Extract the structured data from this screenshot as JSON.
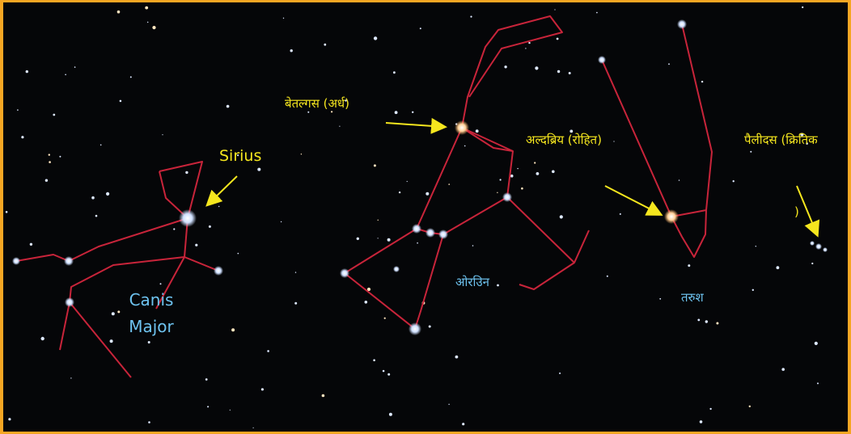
{
  "labels": {
    "sirius": "Sirius",
    "canis_major": [
      "Canis",
      "Major"
    ],
    "betelgeuse": "बेतल्गस (अर्ध)",
    "aldebaran": "अल्दब्रिय (रोहित)",
    "pleiades": [
      "पैलीदस (क्रितिक",
      ")"
    ],
    "orion": "ओरउिन",
    "taurus": "तरुश"
  }
}
